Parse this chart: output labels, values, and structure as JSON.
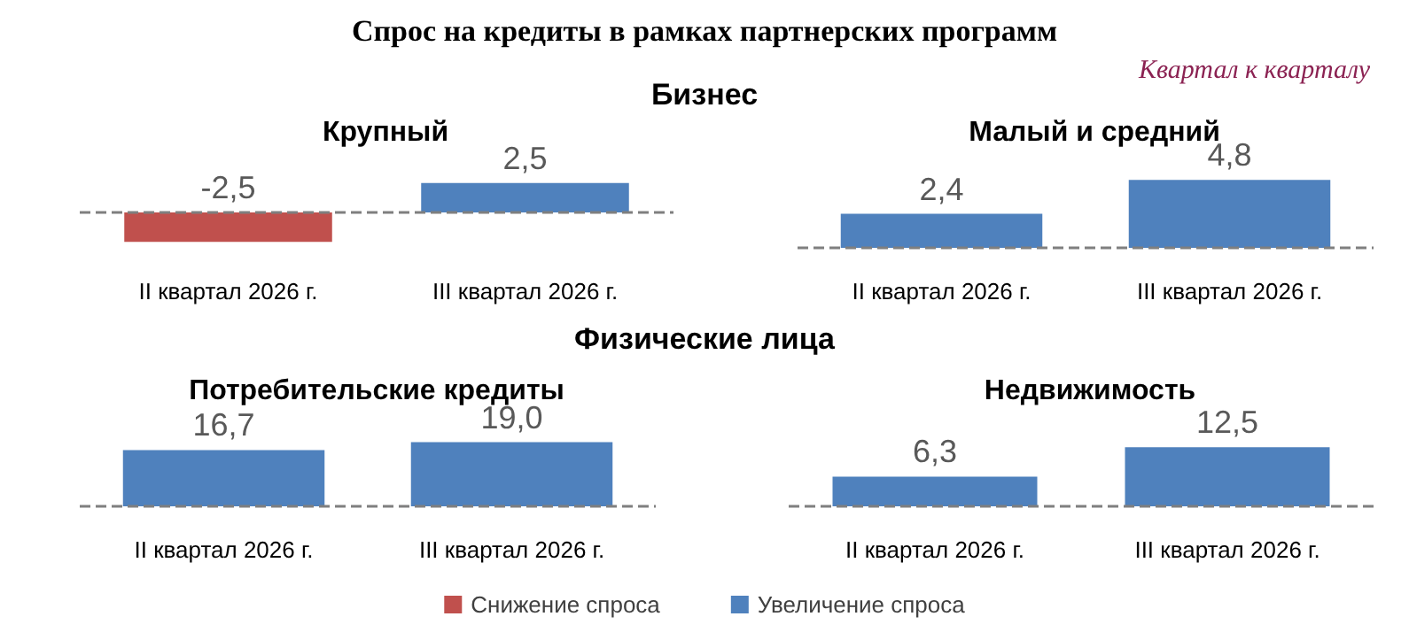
{
  "chart_data": [
    {
      "type": "bar",
      "title": "Крупный",
      "annotations": [
        "Спрос на кредиты в рамках партнерских программ",
        "Квартал к кварталу",
        "Бизнес"
      ],
      "categories": [
        "II квартал 2026 г.",
        "III квартал 2026 г."
      ],
      "stacked": true,
      "ref_lines": [
        {
          "axis": "y",
          "value": 0,
          "color": "#7f7f7f",
          "line_style": "dashed"
        }
      ],
      "series": [
        {
          "color": "#c0504d",
          "values": [
            -2.5,
            null
          ],
          "value_labels": [
            "-2,5",
            null
          ]
        },
        {
          "color": "#4f81bd",
          "values": [
            null,
            2.5
          ],
          "value_labels": [
            null,
            "2,5"
          ]
        }
      ]
    },
    {
      "type": "bar",
      "title": "Малый и средний",
      "categories": [
        "II квартал 2026 г.",
        "III квартал 2026 г."
      ],
      "stacked": true,
      "ref_lines": [
        {
          "axis": "y",
          "value": 0,
          "color": "#7f7f7f",
          "line_style": "dashed"
        }
      ],
      "series": [
        {
          "color": "#c0504d",
          "values": [
            null,
            null
          ],
          "value_labels": [
            null,
            null
          ]
        },
        {
          "color": "#4f81bd",
          "values": [
            2.4,
            4.8
          ],
          "value_labels": [
            "2,4",
            "4,8"
          ]
        }
      ]
    },
    {
      "type": "bar",
      "title": "Потребительские кредиты",
      "annotations": [
        "Физические лица"
      ],
      "categories": [
        "II квартал 2026 г.",
        "III квартал 2026 г."
      ],
      "stacked": true,
      "ref_lines": [
        {
          "axis": "y",
          "value": 0,
          "color": "#7f7f7f",
          "line_style": "dashed"
        }
      ],
      "series": [
        {
          "color": "#c0504d",
          "values": [
            null,
            null
          ],
          "value_labels": [
            null,
            null
          ]
        },
        {
          "color": "#4f81bd",
          "values": [
            16.7,
            19.0
          ],
          "value_labels": [
            "16,7",
            "19,0"
          ]
        }
      ]
    },
    {
      "type": "bar",
      "title": "Недвижимость",
      "categories": [
        "II квартал 2026 г.",
        "III квартал 2026 г."
      ],
      "stacked": true,
      "legend": "bottom",
      "ref_lines": [
        {
          "axis": "y",
          "value": 0,
          "color": "#7f7f7f",
          "line_style": "dashed"
        }
      ],
      "series": [
        {
          "name": "Снижение спроса",
          "color": "#c0504d",
          "values": [
            null,
            null
          ],
          "value_labels": [
            null,
            null
          ]
        },
        {
          "name": "Увеличение спроса",
          "color": "#4f81bd",
          "values": [
            6.3,
            12.5
          ],
          "value_labels": [
            "6,3",
            "12,5"
          ]
        }
      ]
    }
  ]
}
